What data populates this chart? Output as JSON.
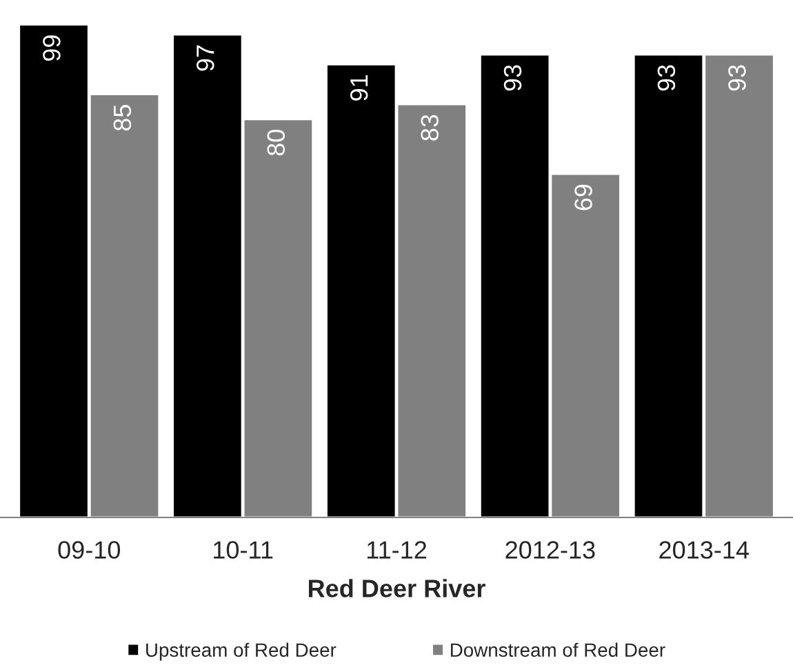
{
  "chart_data": {
    "type": "bar",
    "xlabel": "Red Deer River",
    "categories": [
      "09-10",
      "10-11",
      "11-12",
      "2012-13",
      "2013-14"
    ],
    "series": [
      {
        "name": "Upstream of Red Deer",
        "color": "#000000",
        "values": [
          99,
          97,
          91,
          93,
          93
        ]
      },
      {
        "name": "Downstream of Red Deer",
        "color": "#808080",
        "values": [
          85,
          80,
          83,
          69,
          93
        ]
      }
    ],
    "data_labels": true,
    "grid": false,
    "legend": "bottom",
    "tick_labels": "x"
  }
}
